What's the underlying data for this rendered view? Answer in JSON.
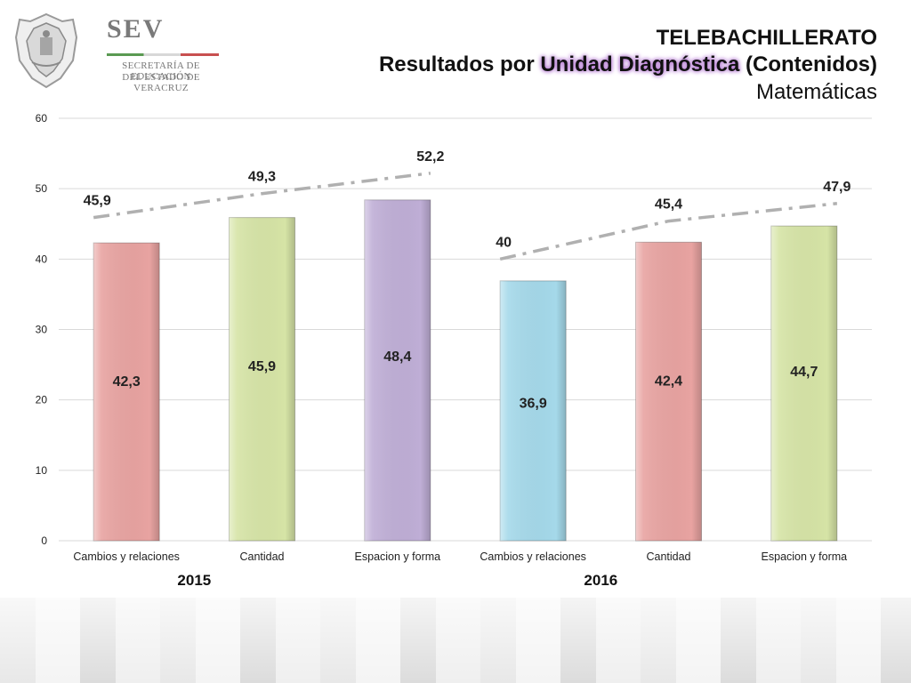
{
  "header": {
    "org_name": "SEV",
    "org_sub1": "SECRETARÍA DE EDUCACIÓN",
    "org_sub2": "DEL ESTADO DE VERACRUZ",
    "title_line1": "TELEBACHILLERATO",
    "title_line2_pre": "Resultados por ",
    "title_line2_highlight": "Unidad Diagnóstica",
    "title_line2_post": " (Contenidos)",
    "title_line3": "Matemáticas"
  },
  "chart_data": {
    "type": "bar",
    "categories": [
      "Cambios y relaciones",
      "Cantidad",
      "Espacion y forma",
      "Cambios y relaciones",
      "Cantidad",
      "Espacion y forma"
    ],
    "values": [
      42.3,
      45.9,
      48.4,
      36.9,
      42.4,
      44.7
    ],
    "value_labels": [
      "42,3",
      "45,9",
      "48,4",
      "36,9",
      "42,4",
      "44,7"
    ],
    "bar_colors": [
      "#e8a3a1",
      "#d6e4a6",
      "#bfaed6",
      "#a5d9ea",
      "#e8a3a1",
      "#d6e4a6"
    ],
    "group_labels": [
      {
        "label": "2015",
        "categories": [
          0,
          1,
          2
        ]
      },
      {
        "label": "2016",
        "categories": [
          3,
          4,
          5
        ]
      }
    ],
    "reference_series": [
      {
        "points": [
          {
            "category": 0,
            "value": 45.9,
            "label": "45,9"
          },
          {
            "category": 1,
            "value": 49.3,
            "label": "49,3"
          },
          {
            "category": 2,
            "value": 52.2,
            "label": "52,2"
          }
        ]
      },
      {
        "points": [
          {
            "category": 3,
            "value": 40,
            "label": "40"
          },
          {
            "category": 4,
            "value": 45.4,
            "label": "45,4"
          },
          {
            "category": 5,
            "value": 47.9,
            "label": "47,9"
          }
        ]
      }
    ],
    "reference_color": "#b0b0b0",
    "ylim": [
      0,
      60
    ],
    "yticks": [
      0,
      10,
      20,
      30,
      40,
      50,
      60
    ],
    "grid": true,
    "title": "",
    "xlabel": "",
    "ylabel": ""
  }
}
